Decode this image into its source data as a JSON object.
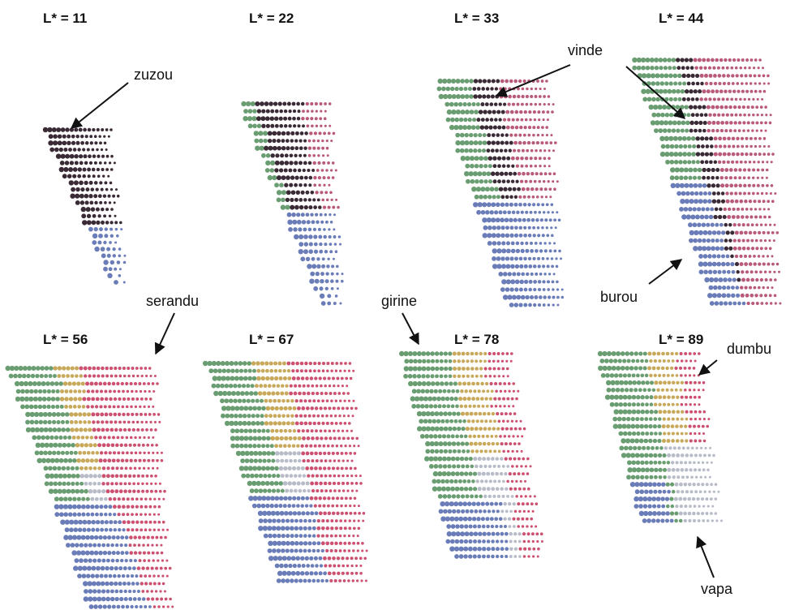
{
  "panels": [
    {
      "title": "L* = 11"
    },
    {
      "title": "L* = 22"
    },
    {
      "title": "L* = 33"
    },
    {
      "title": "L* = 44"
    },
    {
      "title": "L* = 56"
    },
    {
      "title": "L* = 67"
    },
    {
      "title": "L* = 78"
    },
    {
      "title": "L* = 89"
    }
  ],
  "labels": {
    "zuzou": "zuzou",
    "vinde": "vinde",
    "burou": "burou",
    "serandu": "serandu",
    "girine": "girine",
    "dumbu": "dumbu",
    "vapa": "vapa"
  },
  "colors": {
    "zuzou": "#3a2a35",
    "vinde": "#b85a78",
    "gruen": "#6a9e72",
    "burou": "#6b7db8",
    "dumbu": "#c8a85a",
    "vapa": "#b8bcc8",
    "serandu": "#cc5070"
  }
}
